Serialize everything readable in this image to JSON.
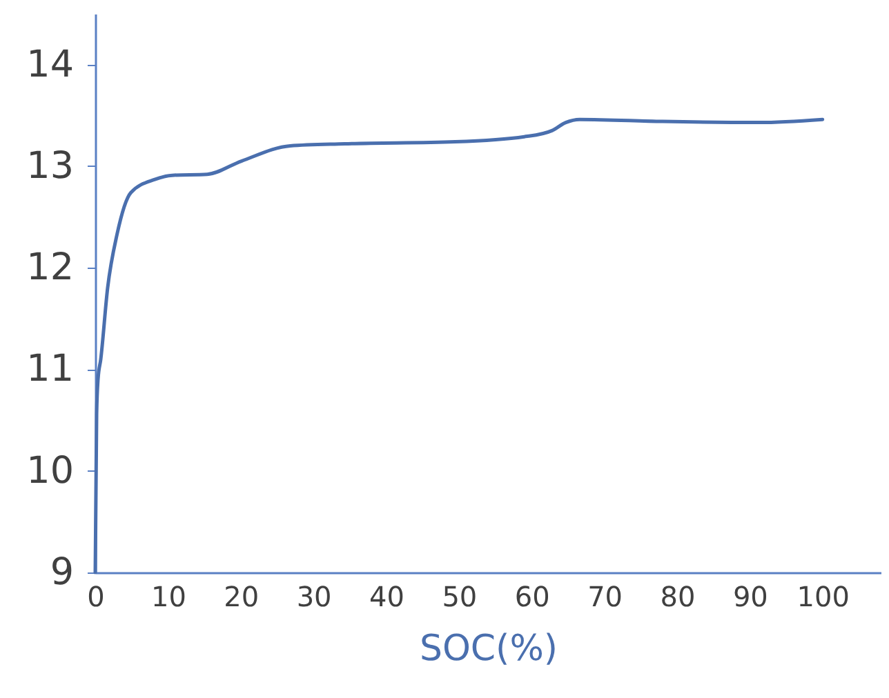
{
  "chart_data": {
    "type": "line",
    "xlabel": "SOC(%)",
    "xlim": [
      0,
      108
    ],
    "ylim": [
      9,
      14.5
    ],
    "xticks": [
      0,
      10,
      20,
      30,
      40,
      50,
      60,
      70,
      80,
      90,
      100
    ],
    "yticks": [
      9,
      10,
      11,
      12,
      13,
      14
    ],
    "grid": false,
    "marker": "none",
    "line_style": "solid",
    "x": [
      0,
      0.19,
      0.38,
      0.76,
      1.7,
      3.0,
      4.9,
      8.2,
      10.6,
      15.4,
      20.1,
      26.8,
      34.3,
      49.5,
      59,
      62.8,
      64.7,
      66.6,
      78,
      91.3,
      100
    ],
    "series": [
      {
        "color": "#4a6fae",
        "values": [
          9,
          10.56,
          10.9,
          11.1,
          11.8,
          12.33,
          12.74,
          12.87,
          12.91,
          12.92,
          13.05,
          13.2,
          13.22,
          13.24,
          13.29,
          13.35,
          13.43,
          13.46,
          13.44,
          13.43,
          13.46
        ]
      }
    ]
  }
}
